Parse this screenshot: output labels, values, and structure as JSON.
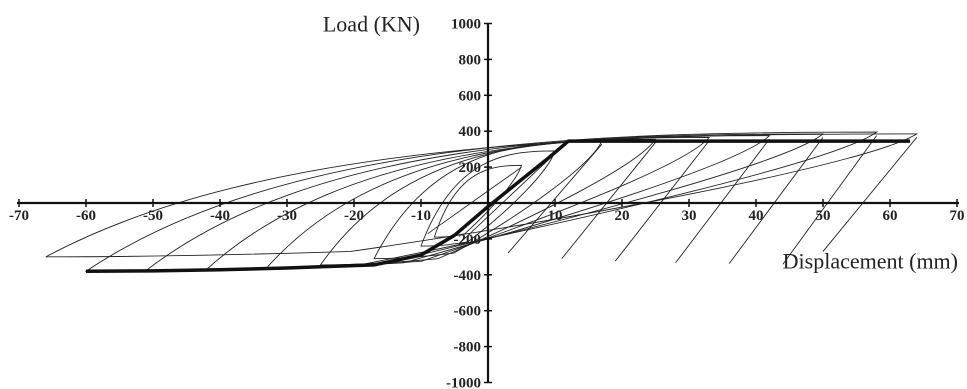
{
  "chart_data": {
    "type": "line",
    "title": "",
    "xlabel": "Displacement (mm)",
    "ylabel": "Load (KN)",
    "xlim": [
      -70,
      70
    ],
    "ylim": [
      -1000,
      1000
    ],
    "x_ticks": [
      "-70",
      "-60",
      "-50",
      "-40",
      "-30",
      "-20",
      "-10",
      "10",
      "20",
      "30",
      "40",
      "50",
      "60",
      "70"
    ],
    "y_ticks": [
      "1000",
      "800",
      "600",
      "400",
      "200",
      "-200",
      "-400",
      "-600",
      "-800",
      "-1000"
    ],
    "x_tick_values": [
      -70,
      -60,
      -50,
      -40,
      -30,
      -20,
      -10,
      10,
      20,
      30,
      40,
      50,
      60,
      70
    ],
    "y_tick_values": [
      1000,
      800,
      600,
      400,
      200,
      -200,
      -400,
      -600,
      -800,
      -1000
    ],
    "grid": false,
    "series": [
      {
        "style": "thin",
        "loops": [
          {
            "dmax": 5,
            "pmax": 210,
            "dmin": -8,
            "pmin": -190
          },
          {
            "dmax": 10,
            "pmax": 290,
            "dmin": -10,
            "pmin": -240
          },
          {
            "dmax": 17,
            "pmax": 345,
            "dmin": -17,
            "pmin": -310
          },
          {
            "dmax": 25,
            "pmax": 355,
            "dmin": -25,
            "pmin": -345
          },
          {
            "dmax": 33,
            "pmax": 365,
            "dmin": -33,
            "pmin": -360
          },
          {
            "dmax": 42,
            "pmax": 375,
            "dmin": -42,
            "pmin": -370
          },
          {
            "dmax": 50,
            "pmax": 385,
            "dmin": -51,
            "pmin": -375
          },
          {
            "dmax": 58,
            "pmax": 395,
            "dmin": -60,
            "pmin": -380
          },
          {
            "dmax": 64,
            "pmax": 385,
            "dmin": -66,
            "pmin": -300
          }
        ]
      },
      {
        "style": "envelope",
        "x": [
          -60,
          -50,
          -40,
          -30,
          -25,
          -17,
          -10,
          -5,
          0,
          5,
          9,
          12,
          17,
          25,
          33,
          42,
          50,
          58,
          63
        ],
        "y": [
          -380,
          -378,
          -372,
          -362,
          -355,
          -345,
          -290,
          -180,
          -20,
          130,
          250,
          345,
          345,
          345,
          345,
          345,
          345,
          345,
          345
        ]
      }
    ]
  }
}
